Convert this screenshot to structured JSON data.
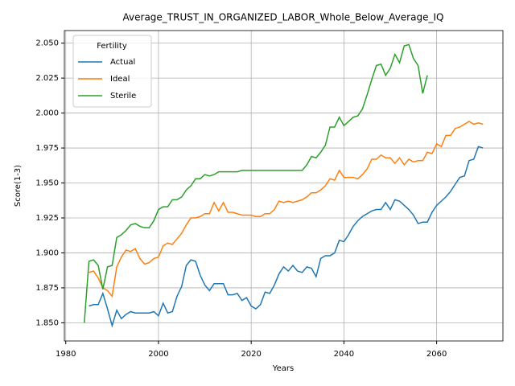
{
  "chart_data": {
    "type": "line",
    "title": "Average_TRUST_IN_ORGANIZED_LABOR_Whole_Below_Average_IQ",
    "xlabel": "Years",
    "ylabel": "Score(1-3)",
    "x": [
      1984,
      1985,
      1986,
      1987,
      1988,
      1989,
      1990,
      1991,
      1992,
      1993,
      1994,
      1995,
      1996,
      1997,
      1998,
      1999,
      2000,
      2001,
      2002,
      2003,
      2004,
      2005,
      2006,
      2007,
      2008,
      2009,
      2010,
      2011,
      2012,
      2013,
      2014,
      2015,
      2016,
      2017,
      2018,
      2019,
      2020,
      2021,
      2022,
      2023,
      2024,
      2025,
      2026,
      2027,
      2028,
      2029,
      2030,
      2031,
      2032,
      2033,
      2034,
      2035,
      2036,
      2037,
      2038,
      2039,
      2040,
      2041,
      2042,
      2043,
      2044,
      2045,
      2046,
      2047,
      2048,
      2049,
      2050,
      2051,
      2052,
      2053,
      2054,
      2055,
      2056,
      2057,
      2058,
      2059,
      2060,
      2061,
      2062,
      2063,
      2064,
      2065,
      2066,
      2067,
      2068,
      2069,
      2070
    ],
    "series": [
      {
        "name": "Actual",
        "color": "#1f77b4",
        "values": [
          null,
          1.862,
          1.863,
          1.863,
          1.871,
          1.86,
          1.848,
          1.859,
          1.853,
          1.856,
          1.858,
          1.857,
          1.857,
          1.857,
          1.857,
          1.858,
          1.855,
          1.864,
          1.857,
          1.858,
          1.869,
          1.876,
          1.891,
          1.895,
          1.894,
          1.884,
          1.877,
          1.873,
          1.878,
          1.878,
          1.878,
          1.87,
          1.87,
          1.871,
          1.866,
          1.868,
          1.862,
          1.86,
          1.863,
          1.872,
          1.871,
          1.877,
          1.885,
          1.89,
          1.887,
          1.891,
          1.887,
          1.886,
          1.89,
          1.889,
          1.883,
          1.896,
          1.898,
          1.898,
          1.9,
          1.909,
          1.908,
          1.913,
          1.919,
          1.923,
          1.926,
          1.928,
          1.93,
          1.931,
          1.931,
          1.936,
          1.931,
          1.938,
          1.937,
          1.934,
          1.931,
          1.927,
          1.921,
          1.922,
          1.922,
          1.929,
          1.934,
          1.937,
          1.94,
          1.944,
          1.949,
          1.954,
          1.955,
          1.966,
          1.967,
          1.976,
          1.975
        ]
      },
      {
        "name": "Ideal",
        "color": "#ff7f0e",
        "values": [
          null,
          1.886,
          1.887,
          1.882,
          1.875,
          1.873,
          1.869,
          1.89,
          1.897,
          1.902,
          1.901,
          1.903,
          1.896,
          1.892,
          1.893,
          1.896,
          1.897,
          1.905,
          1.907,
          1.906,
          1.91,
          1.914,
          1.92,
          1.925,
          1.925,
          1.926,
          1.928,
          1.928,
          1.936,
          1.93,
          1.936,
          1.929,
          1.929,
          1.928,
          1.927,
          1.927,
          1.927,
          1.926,
          1.926,
          1.928,
          1.928,
          1.931,
          1.937,
          1.936,
          1.937,
          1.936,
          1.937,
          1.938,
          1.94,
          1.943,
          1.943,
          1.945,
          1.948,
          1.953,
          1.952,
          1.959,
          1.954,
          1.954,
          1.954,
          1.953,
          1.956,
          1.96,
          1.967,
          1.967,
          1.97,
          1.968,
          1.968,
          1.964,
          1.968,
          1.963,
          1.967,
          1.965,
          1.966,
          1.966,
          1.972,
          1.971,
          1.978,
          1.976,
          1.984,
          1.984,
          1.989,
          1.99,
          1.992,
          1.994,
          1.992,
          1.993,
          1.992
        ]
      },
      {
        "name": "Sterile",
        "color": "#2ca02c",
        "values": [
          1.85,
          1.894,
          1.895,
          1.891,
          1.874,
          1.89,
          1.891,
          1.911,
          1.913,
          1.916,
          1.92,
          1.921,
          1.919,
          1.918,
          1.918,
          1.923,
          1.931,
          1.933,
          1.933,
          1.938,
          1.938,
          1.94,
          1.945,
          1.948,
          1.953,
          1.953,
          1.956,
          1.955,
          1.956,
          1.958,
          1.958,
          1.958,
          1.958,
          1.958,
          1.959,
          1.959,
          1.959,
          1.959,
          1.959,
          1.959,
          1.959,
          1.959,
          1.959,
          1.959,
          1.959,
          1.959,
          1.959,
          1.959,
          1.963,
          1.969,
          1.968,
          1.972,
          1.977,
          1.99,
          1.99,
          1.997,
          1.991,
          1.994,
          1.997,
          1.998,
          2.003,
          2.013,
          2.024,
          2.034,
          2.035,
          2.027,
          2.032,
          2.042,
          2.036,
          2.048,
          2.049,
          2.039,
          2.034,
          2.014,
          2.027,
          null,
          null,
          null,
          null,
          null,
          null,
          null,
          null,
          null,
          null,
          null,
          null
        ]
      }
    ],
    "xlim": [
      1979.7,
      2074.3
    ],
    "xticks": [
      1980,
      2000,
      2020,
      2040,
      2060
    ],
    "ylim": [
      1.837,
      2.059
    ],
    "yticks": [
      {
        "value": 1.85,
        "label": "1.850"
      },
      1.875,
      {
        "value": 1.9,
        "label": "1.900"
      },
      1.925,
      {
        "value": 1.95,
        "label": "1.950"
      },
      1.975,
      {
        "value": 2.0,
        "label": "2.000"
      },
      2.025,
      {
        "value": 2.05,
        "label": "2.050"
      }
    ],
    "grid": true,
    "legend": {
      "title": "Fertility",
      "loc": "upper left"
    }
  }
}
